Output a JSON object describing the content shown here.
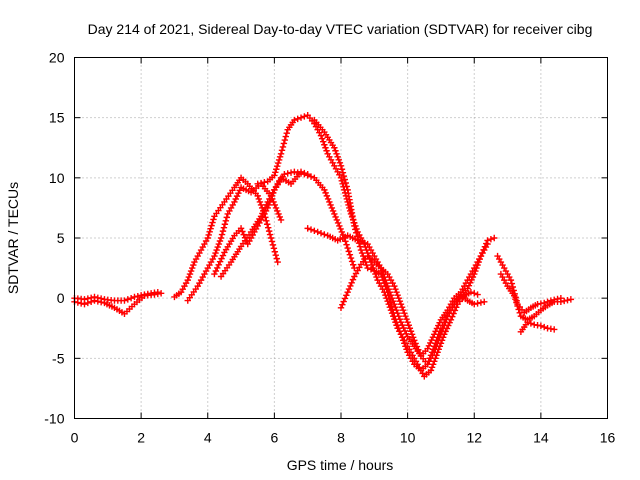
{
  "chart_data": {
    "type": "scatter",
    "title": "Day 214 of 2021, Sidereal Day-to-day VTEC variation (SDTVAR) for receiver cibg",
    "xlabel": "GPS time / hours",
    "ylabel": "SDTVAR / TECUs",
    "xlim": [
      0,
      16
    ],
    "ylim": [
      -10,
      20
    ],
    "xticks": [
      "0",
      "2",
      "4",
      "6",
      "8",
      "10",
      "12",
      "14",
      "16"
    ],
    "yticks": [
      "-10",
      "-5",
      "0",
      "5",
      "10",
      "15",
      "20"
    ],
    "grid": true,
    "marker": "+",
    "color": "#ff0000",
    "series": [
      {
        "name": "baseline",
        "points": [
          [
            0.0,
            -0.3
          ],
          [
            0.3,
            -0.5
          ],
          [
            0.6,
            -0.2
          ],
          [
            0.9,
            -0.4
          ],
          [
            1.2,
            -0.8
          ],
          [
            1.5,
            -1.3
          ],
          [
            1.8,
            -0.5
          ],
          [
            2.1,
            0.2
          ],
          [
            2.4,
            0.3
          ],
          [
            2.6,
            0.4
          ]
        ]
      },
      {
        "name": "baseline-2",
        "points": [
          [
            0.0,
            0.0
          ],
          [
            0.3,
            -0.1
          ],
          [
            0.6,
            0.1
          ],
          [
            0.9,
            -0.1
          ],
          [
            1.2,
            -0.2
          ],
          [
            1.5,
            -0.2
          ],
          [
            1.8,
            0.1
          ],
          [
            2.1,
            0.3
          ],
          [
            2.5,
            0.5
          ]
        ]
      },
      {
        "name": "rise-a",
        "points": [
          [
            3.0,
            0.1
          ],
          [
            3.2,
            0.5
          ],
          [
            3.4,
            1.5
          ],
          [
            3.6,
            3.0
          ],
          [
            3.8,
            4.0
          ],
          [
            4.0,
            5.0
          ],
          [
            4.2,
            6.8
          ],
          [
            4.5,
            8.0
          ],
          [
            4.8,
            9.2
          ],
          [
            5.0,
            10.0
          ],
          [
            5.2,
            9.5
          ],
          [
            5.5,
            8.5
          ],
          [
            5.7,
            7.0
          ],
          [
            5.9,
            5.0
          ],
          [
            6.1,
            3.0
          ]
        ]
      },
      {
        "name": "rise-b",
        "points": [
          [
            3.4,
            -0.2
          ],
          [
            3.7,
            1.0
          ],
          [
            4.0,
            2.5
          ],
          [
            4.2,
            3.5
          ],
          [
            4.4,
            5.0
          ],
          [
            4.6,
            7.0
          ],
          [
            4.8,
            8.0
          ],
          [
            5.0,
            9.2
          ],
          [
            5.3,
            8.8
          ],
          [
            5.6,
            9.5
          ],
          [
            5.9,
            8.5
          ],
          [
            6.2,
            6.5
          ]
        ]
      },
      {
        "name": "mid-a",
        "points": [
          [
            4.4,
            1.8
          ],
          [
            4.7,
            3.0
          ],
          [
            5.0,
            4.3
          ],
          [
            5.3,
            5.5
          ],
          [
            5.6,
            6.8
          ],
          [
            5.8,
            8.0
          ],
          [
            6.0,
            9.0
          ],
          [
            6.3,
            10.3
          ],
          [
            6.6,
            10.5
          ],
          [
            6.9,
            10.3
          ],
          [
            7.2,
            10.0
          ],
          [
            7.5,
            9.0
          ],
          [
            7.8,
            7.0
          ],
          [
            8.1,
            5.0
          ],
          [
            8.4,
            2.5
          ]
        ]
      },
      {
        "name": "mid-b",
        "points": [
          [
            4.2,
            2.0
          ],
          [
            4.5,
            3.8
          ],
          [
            4.8,
            5.2
          ],
          [
            5.0,
            5.8
          ],
          [
            5.2,
            4.5
          ],
          [
            5.4,
            5.5
          ],
          [
            5.6,
            6.5
          ],
          [
            5.8,
            7.5
          ],
          [
            6.0,
            9.0
          ],
          [
            6.2,
            10.0
          ],
          [
            6.5,
            9.5
          ],
          [
            6.8,
            10.5
          ],
          [
            7.0,
            10.3
          ]
        ]
      },
      {
        "name": "peak",
        "points": [
          [
            5.5,
            9.5
          ],
          [
            5.8,
            9.7
          ],
          [
            6.0,
            10.2
          ],
          [
            6.2,
            12.0
          ],
          [
            6.4,
            14.0
          ],
          [
            6.6,
            14.8
          ],
          [
            6.8,
            15.0
          ],
          [
            7.0,
            15.2
          ],
          [
            7.2,
            14.5
          ],
          [
            7.4,
            13.5
          ],
          [
            7.6,
            12.0
          ],
          [
            7.8,
            11.0
          ],
          [
            8.0,
            10.0
          ],
          [
            8.1,
            9.0
          ],
          [
            8.2,
            8.0
          ],
          [
            8.3,
            7.0
          ],
          [
            8.5,
            5.5
          ],
          [
            8.7,
            4.5
          ],
          [
            8.9,
            3.0
          ],
          [
            9.1,
            1.5
          ],
          [
            9.3,
            0.5
          ],
          [
            9.5,
            -1.0
          ],
          [
            9.7,
            -2.5
          ],
          [
            9.9,
            -3.5
          ],
          [
            10.1,
            -4.5
          ],
          [
            10.3,
            -5.5
          ],
          [
            10.5,
            -6.5
          ],
          [
            10.7,
            -6.0
          ],
          [
            10.9,
            -4.5
          ],
          [
            11.1,
            -3.0
          ],
          [
            11.3,
            -1.8
          ],
          [
            11.5,
            -0.5
          ],
          [
            11.7,
            0.2
          ],
          [
            11.9,
            0.5
          ],
          [
            12.1,
            0.3
          ]
        ]
      },
      {
        "name": "decline-a",
        "points": [
          [
            7.2,
            14.8
          ],
          [
            7.5,
            13.8
          ],
          [
            7.8,
            12.5
          ],
          [
            8.0,
            11.0
          ],
          [
            8.2,
            9.0
          ],
          [
            8.4,
            6.0
          ],
          [
            8.6,
            4.0
          ],
          [
            8.8,
            2.5
          ],
          [
            9.0,
            2.3
          ],
          [
            9.2,
            2.0
          ],
          [
            9.4,
            0.5
          ],
          [
            9.6,
            -1.5
          ],
          [
            9.8,
            -3.0
          ],
          [
            10.0,
            -4.5
          ],
          [
            10.2,
            -5.5
          ],
          [
            10.4,
            -6.0
          ],
          [
            10.6,
            -5.5
          ],
          [
            10.8,
            -4.0
          ],
          [
            11.0,
            -2.5
          ],
          [
            11.2,
            -1.5
          ],
          [
            11.4,
            -0.5
          ],
          [
            11.6,
            0.3
          ],
          [
            11.8,
            0.8
          ],
          [
            12.0,
            2.0
          ],
          [
            12.2,
            3.5
          ],
          [
            12.4,
            4.5
          ]
        ]
      },
      {
        "name": "decline-b",
        "points": [
          [
            7.0,
            5.8
          ],
          [
            7.3,
            5.5
          ],
          [
            7.6,
            5.2
          ],
          [
            7.9,
            4.8
          ],
          [
            8.2,
            5.2
          ],
          [
            8.5,
            4.8
          ],
          [
            8.8,
            4.5
          ],
          [
            9.0,
            3.5
          ],
          [
            9.2,
            2.5
          ],
          [
            9.4,
            1.0
          ],
          [
            9.6,
            -0.5
          ],
          [
            9.8,
            -2.0
          ],
          [
            10.0,
            -3.2
          ],
          [
            10.2,
            -4.0
          ],
          [
            10.4,
            -4.8
          ],
          [
            10.6,
            -4.2
          ],
          [
            10.8,
            -3.0
          ],
          [
            11.0,
            -1.8
          ],
          [
            11.2,
            -1.0
          ],
          [
            11.4,
            0.0
          ],
          [
            11.6,
            0.5
          ],
          [
            11.8,
            1.5
          ],
          [
            12.0,
            2.5
          ],
          [
            12.2,
            3.5
          ],
          [
            12.4,
            4.8
          ],
          [
            12.6,
            5.0
          ]
        ]
      },
      {
        "name": "decline-c",
        "points": [
          [
            8.0,
            -0.8
          ],
          [
            8.2,
            0.5
          ],
          [
            8.4,
            1.8
          ],
          [
            8.6,
            2.8
          ],
          [
            8.8,
            3.5
          ],
          [
            9.0,
            3.0
          ],
          [
            9.2,
            2.5
          ],
          [
            9.4,
            2.0
          ],
          [
            9.6,
            1.0
          ],
          [
            9.8,
            -0.5
          ],
          [
            10.0,
            -2.0
          ],
          [
            10.2,
            -3.5
          ],
          [
            10.4,
            -4.8
          ],
          [
            10.6,
            -5.5
          ],
          [
            10.8,
            -4.5
          ],
          [
            11.0,
            -3.0
          ],
          [
            11.2,
            -1.5
          ],
          [
            11.4,
            -0.5
          ],
          [
            11.6,
            0.2
          ],
          [
            11.8,
            -0.2
          ],
          [
            12.0,
            -0.5
          ],
          [
            12.3,
            -0.3
          ]
        ]
      },
      {
        "name": "tail",
        "points": [
          [
            12.8,
            2.0
          ],
          [
            13.0,
            1.0
          ],
          [
            13.2,
            0.2
          ],
          [
            13.4,
            -1.5
          ],
          [
            13.6,
            -1.8
          ],
          [
            13.8,
            -1.5
          ],
          [
            14.0,
            -1.0
          ],
          [
            14.2,
            -0.6
          ],
          [
            14.4,
            -0.3
          ],
          [
            14.6,
            -0.3
          ],
          [
            14.9,
            -0.1
          ]
        ]
      },
      {
        "name": "tail-2",
        "points": [
          [
            12.7,
            3.5
          ],
          [
            12.9,
            2.5
          ],
          [
            13.1,
            1.5
          ],
          [
            13.3,
            -0.5
          ],
          [
            13.5,
            -1.2
          ],
          [
            13.7,
            -0.8
          ],
          [
            13.9,
            -0.5
          ],
          [
            14.1,
            -0.4
          ],
          [
            14.3,
            -0.2
          ],
          [
            14.6,
            0.0
          ]
        ]
      },
      {
        "name": "tail-3",
        "points": [
          [
            13.4,
            -2.8
          ],
          [
            13.6,
            -2.0
          ],
          [
            13.8,
            -2.2
          ],
          [
            14.0,
            -2.3
          ],
          [
            14.2,
            -2.5
          ],
          [
            14.4,
            -2.6
          ]
        ]
      }
    ]
  }
}
